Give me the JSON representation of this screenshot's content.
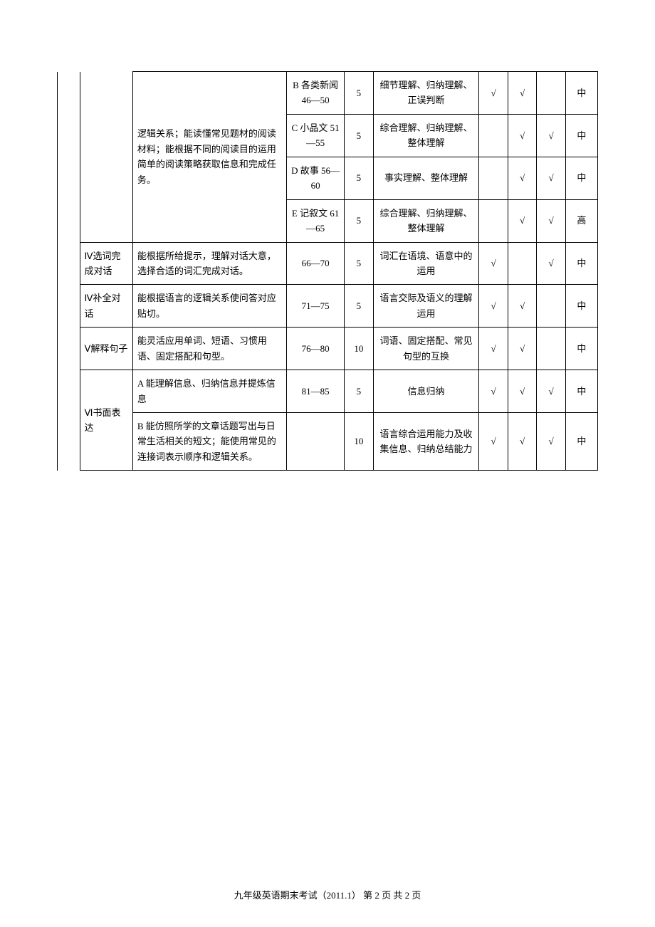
{
  "check": "√",
  "table": {
    "rows": [
      {
        "desc": "逻辑关系；能读懂常见题材的阅读材料；能根据不同的阅读目的运用简单的阅读策略获取信息和完成任务。",
        "sub": [
          {
            "item": "B 各类新闻 46—50",
            "points": "5",
            "ability": "细节理解、归纳理解、正误判断",
            "c1": true,
            "c2": true,
            "c3": false,
            "diff": "中"
          },
          {
            "item": "C 小品文 51—55",
            "points": "5",
            "ability": "综合理解、归纳理解、整体理解",
            "c1": false,
            "c2": true,
            "c3": true,
            "diff": "中"
          },
          {
            "item": "D 故事 56—60",
            "points": "5",
            "ability": "事实理解、整体理解",
            "c1": false,
            "c2": true,
            "c3": true,
            "diff": "中"
          },
          {
            "item": "E 记叙文 61—65",
            "points": "5",
            "ability": "综合理解、归纳理解、整体理解",
            "c1": false,
            "c2": true,
            "c3": true,
            "diff": "高"
          }
        ]
      },
      {
        "section": "Ⅳ选词完成对话",
        "desc": "能根据所给提示，理解对话大意，选择合适的词汇完成对话。",
        "item": "66—70",
        "points": "5",
        "ability": "词汇在语境、语意中的运用",
        "c1": true,
        "c2": false,
        "c3": true,
        "diff": "中"
      },
      {
        "section": "Ⅳ补全对话",
        "desc": "能根据语言的逻辑关系使问答对应贴切。",
        "item": "71—75",
        "points": "5",
        "ability": "语言交际及语义的理解运用",
        "c1": true,
        "c2": true,
        "c3": false,
        "diff": "中"
      },
      {
        "section": "Ⅴ解释句子",
        "desc": "能灵活应用单词、短语、习惯用语、固定搭配和句型。",
        "item": "76—80",
        "points": "10",
        "ability": "词语、固定搭配、常见句型的互换",
        "c1": true,
        "c2": true,
        "c3": false,
        "diff": "中"
      },
      {
        "section": "Ⅵ书面表达",
        "sub": [
          {
            "desc": "A 能理解信息、归纳信息并提炼信息",
            "item": "81—85",
            "points": "5",
            "ability": "信息归纳",
            "c1": true,
            "c2": true,
            "c3": true,
            "diff": "中"
          },
          {
            "desc": "B 能仿照所学的文章话题写出与日常生活相关的短文；能使用常见的连接词表示顺序和逻辑关系。",
            "item": "",
            "points": "10",
            "ability": "语言综合运用能力及收集信息、归纳总结能力",
            "c1": true,
            "c2": true,
            "c3": true,
            "diff": "中"
          }
        ]
      }
    ]
  },
  "footer": "九年级英语期末考试（2011.1）   第 2 页   共 2 页"
}
